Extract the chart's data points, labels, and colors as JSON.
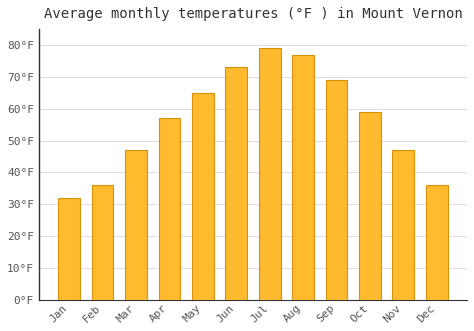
{
  "title": "Average monthly temperatures (°F ) in Mount Vernon",
  "months": [
    "Jan",
    "Feb",
    "Mar",
    "Apr",
    "May",
    "Jun",
    "Jul",
    "Aug",
    "Sep",
    "Oct",
    "Nov",
    "Dec"
  ],
  "values": [
    32,
    36,
    47,
    57,
    65,
    73,
    79,
    77,
    69,
    59,
    47,
    36
  ],
  "bar_color": "#FFBA2E",
  "bar_edge_color": "#D4930A",
  "background_color": "#ffffff",
  "grid_color": "#dddddd",
  "ylim": [
    0,
    85
  ],
  "yticks": [
    0,
    10,
    20,
    30,
    40,
    50,
    60,
    70,
    80
  ],
  "ytick_labels": [
    "0°F",
    "10°F",
    "20°F",
    "30°F",
    "40°F",
    "50°F",
    "60°F",
    "70°F",
    "80°F"
  ],
  "title_fontsize": 10,
  "tick_fontsize": 8,
  "title_color": "#333333",
  "tick_color": "#555555",
  "spine_color": "#333333",
  "bar_width": 0.65
}
